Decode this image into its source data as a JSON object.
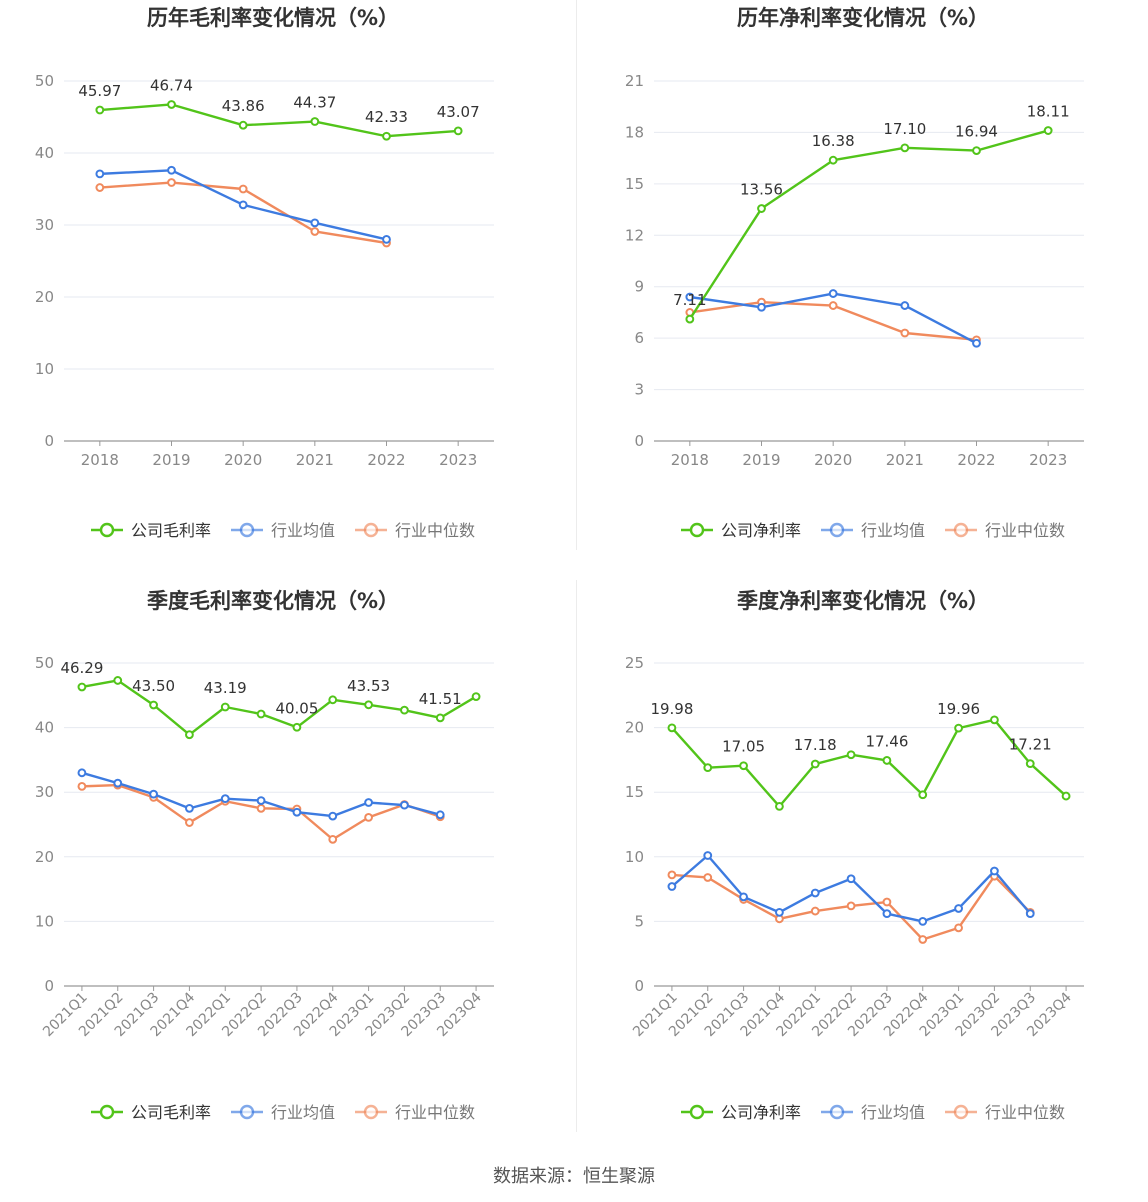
{
  "colors": {
    "company": "#52c41a",
    "industry_avg": "#3d7be0",
    "industry_median": "#f08a5d",
    "grid": "#e6e9f0",
    "axis": "#999999",
    "label": "#333333",
    "tick": "#888888"
  },
  "footer": "数据来源：恒生聚源",
  "chart_data": [
    {
      "type": "line",
      "title": "历年毛利率变化情况（%）",
      "categories": [
        "2018",
        "2019",
        "2020",
        "2021",
        "2022",
        "2023"
      ],
      "ylim": [
        0,
        50
      ],
      "yticks": [
        0,
        10,
        20,
        30,
        40,
        50
      ],
      "grid": true,
      "legend": "bottom",
      "rotate_x": false,
      "series": [
        {
          "name": "公司毛利率",
          "color_key": "company",
          "values": [
            45.97,
            46.74,
            43.86,
            44.37,
            42.33,
            43.07
          ],
          "labels": [
            "45.97",
            "46.74",
            "43.86",
            "44.37",
            "42.33",
            "43.07"
          ]
        },
        {
          "name": "行业均值",
          "color_key": "industry_avg",
          "values": [
            37.1,
            37.6,
            32.8,
            30.3,
            28.0,
            null
          ],
          "labels": []
        },
        {
          "name": "行业中位数",
          "color_key": "industry_median",
          "values": [
            35.2,
            35.9,
            35.0,
            29.1,
            27.5,
            null
          ],
          "labels": []
        }
      ]
    },
    {
      "type": "line",
      "title": "历年净利率变化情况（%）",
      "categories": [
        "2018",
        "2019",
        "2020",
        "2021",
        "2022",
        "2023"
      ],
      "ylim": [
        0,
        21
      ],
      "yticks": [
        0,
        3,
        6,
        9,
        12,
        15,
        18,
        21
      ],
      "grid": true,
      "legend": "bottom",
      "rotate_x": false,
      "series": [
        {
          "name": "公司净利率",
          "color_key": "company",
          "values": [
            7.11,
            13.56,
            16.38,
            17.1,
            16.94,
            18.11
          ],
          "labels": [
            "7.11",
            "13.56",
            "16.38",
            "17.10",
            "16.94",
            "18.11"
          ]
        },
        {
          "name": "行业均值",
          "color_key": "industry_avg",
          "values": [
            8.4,
            7.8,
            8.6,
            7.9,
            5.7,
            null
          ],
          "labels": []
        },
        {
          "name": "行业中位数",
          "color_key": "industry_median",
          "values": [
            7.5,
            8.1,
            7.9,
            6.3,
            5.9,
            null
          ],
          "labels": []
        }
      ]
    },
    {
      "type": "line",
      "title": "季度毛利率变化情况（%）",
      "categories": [
        "2021Q1",
        "2021Q2",
        "2021Q3",
        "2021Q4",
        "2022Q1",
        "2022Q2",
        "2022Q3",
        "2022Q4",
        "2023Q1",
        "2023Q2",
        "2023Q3",
        "2023Q4"
      ],
      "ylim": [
        0,
        50
      ],
      "yticks": [
        0,
        10,
        20,
        30,
        40,
        50
      ],
      "grid": true,
      "legend": "bottom",
      "rotate_x": true,
      "series": [
        {
          "name": "公司毛利率",
          "color_key": "company",
          "values": [
            46.29,
            47.3,
            43.5,
            38.9,
            43.19,
            42.1,
            40.05,
            44.3,
            43.53,
            42.7,
            41.51,
            44.8
          ],
          "labels": [
            "46.29",
            "",
            "43.50",
            "",
            "43.19",
            "",
            "40.05",
            "",
            "43.53",
            "",
            "41.51",
            ""
          ]
        },
        {
          "name": "行业均值",
          "color_key": "industry_avg",
          "values": [
            33.0,
            31.4,
            29.7,
            27.5,
            29.0,
            28.7,
            26.9,
            26.3,
            28.4,
            28.0,
            26.5,
            null
          ],
          "labels": []
        },
        {
          "name": "行业中位数",
          "color_key": "industry_median",
          "values": [
            30.9,
            31.1,
            29.2,
            25.3,
            28.6,
            27.5,
            27.4,
            22.7,
            26.1,
            28.1,
            26.2,
            null
          ],
          "labels": []
        }
      ]
    },
    {
      "type": "line",
      "title": "季度净利率变化情况（%）",
      "categories": [
        "2021Q1",
        "2021Q2",
        "2021Q3",
        "2021Q4",
        "2022Q1",
        "2022Q2",
        "2022Q3",
        "2022Q4",
        "2023Q1",
        "2023Q2",
        "2023Q3",
        "2023Q4"
      ],
      "ylim": [
        0,
        25
      ],
      "yticks": [
        0,
        5,
        10,
        15,
        20,
        25
      ],
      "grid": true,
      "legend": "bottom",
      "rotate_x": true,
      "series": [
        {
          "name": "公司净利率",
          "color_key": "company",
          "values": [
            19.98,
            16.9,
            17.05,
            13.9,
            17.18,
            17.9,
            17.46,
            14.8,
            19.96,
            20.6,
            17.21,
            14.7
          ],
          "labels": [
            "19.98",
            "",
            "17.05",
            "",
            "17.18",
            "",
            "17.46",
            "",
            "19.96",
            "",
            "17.21",
            ""
          ]
        },
        {
          "name": "行业均值",
          "color_key": "industry_avg",
          "values": [
            7.7,
            10.1,
            6.9,
            5.7,
            7.2,
            8.3,
            5.6,
            5.0,
            6.0,
            8.9,
            5.6,
            null
          ],
          "labels": []
        },
        {
          "name": "行业中位数",
          "color_key": "industry_median",
          "values": [
            8.6,
            8.4,
            6.7,
            5.2,
            5.8,
            6.2,
            6.5,
            3.6,
            4.5,
            8.5,
            5.7,
            null
          ],
          "labels": []
        }
      ]
    }
  ]
}
